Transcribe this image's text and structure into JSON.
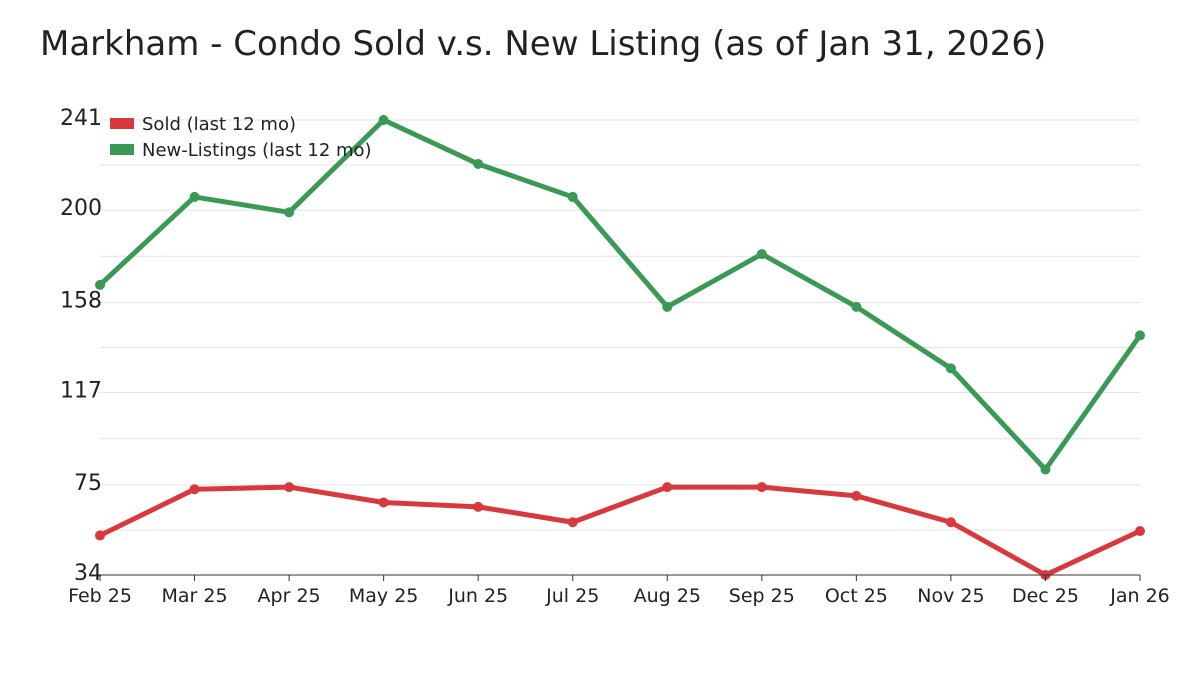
{
  "chart_data": {
    "type": "line",
    "title": "Markham - Condo Sold v.s. New Listing (as of Jan 31, 2026)",
    "xlabel": "",
    "ylabel": "",
    "categories": [
      "Feb 25",
      "Mar 25",
      "Apr 25",
      "May 25",
      "Jun 25",
      "Jul 25",
      "Aug 25",
      "Sep 25",
      "Oct 25",
      "Nov 25",
      "Dec 25",
      "Jan 26"
    ],
    "yticks": [
      34,
      75,
      117,
      158,
      200,
      241
    ],
    "ylim": [
      34,
      241
    ],
    "grid": true,
    "legend_position": "top-left",
    "series": [
      {
        "name": "Sold (last 12 mo)",
        "color": "#d9393c",
        "values": [
          52,
          73,
          74,
          67,
          65,
          58,
          74,
          74,
          70,
          58,
          34,
          54
        ]
      },
      {
        "name": "New-Listings (last 12 mo)",
        "color": "#3a9a55",
        "values": [
          166,
          206,
          199,
          241,
          221,
          206,
          156,
          180,
          156,
          128,
          82,
          143
        ]
      }
    ]
  }
}
